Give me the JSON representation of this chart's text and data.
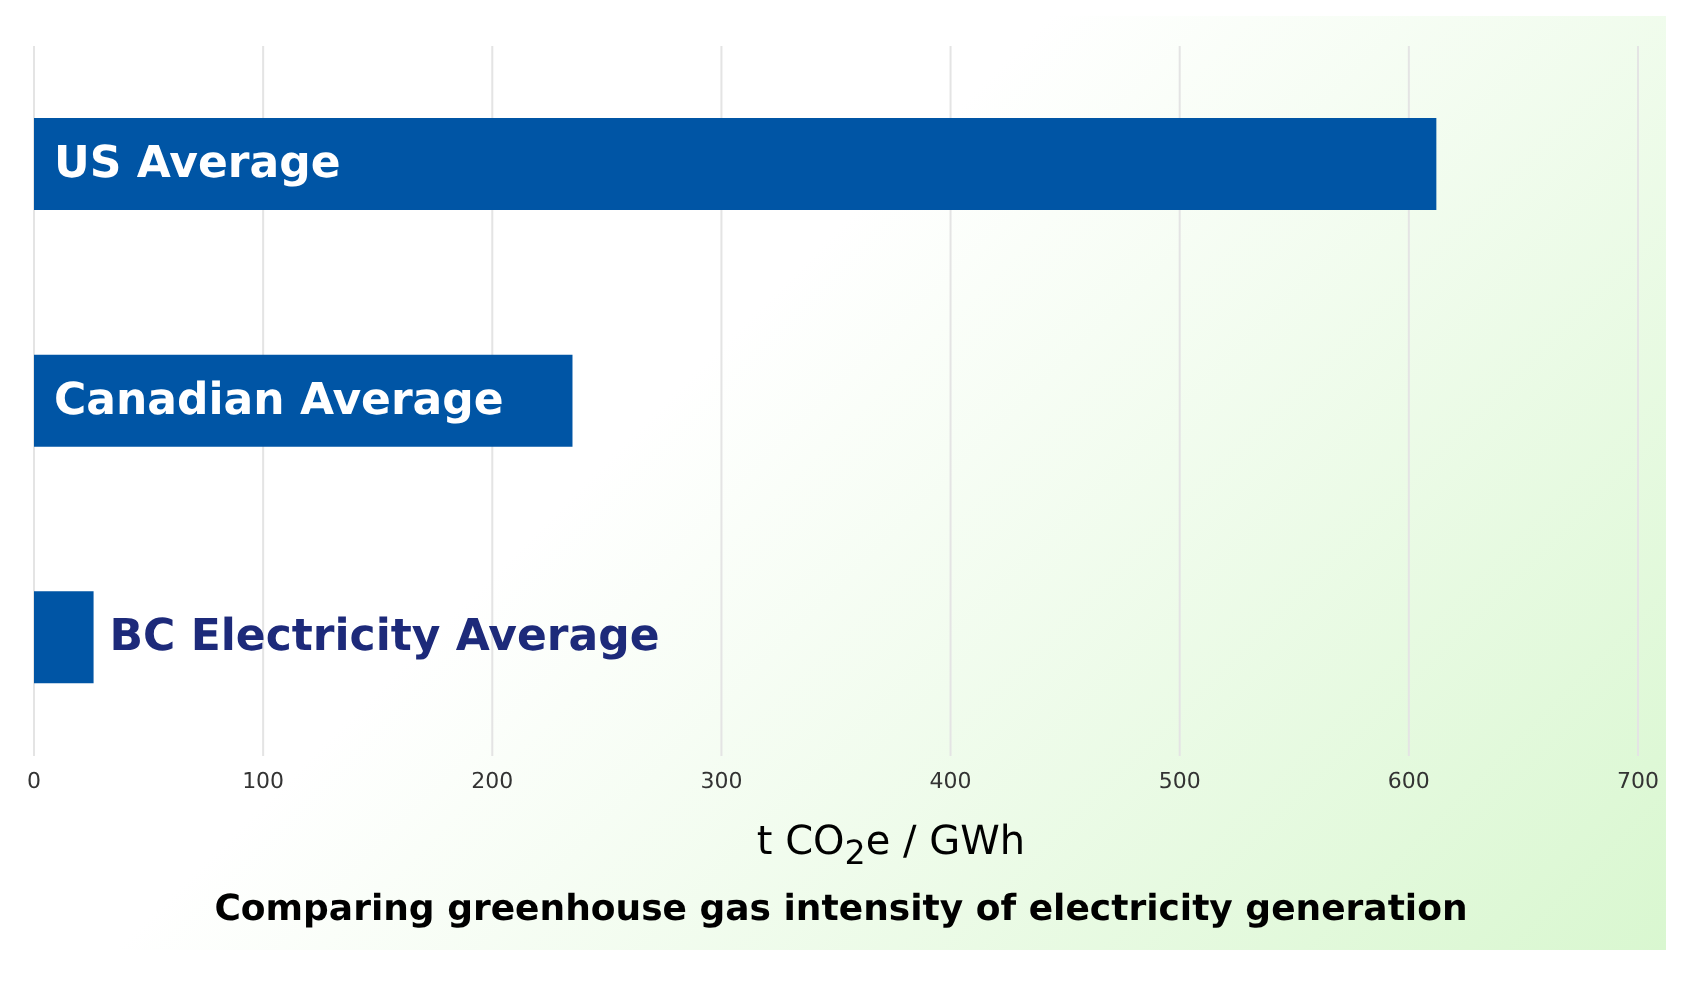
{
  "chart_data": {
    "type": "bar",
    "orientation": "horizontal",
    "title": "Comparing greenhouse gas intensity of electricity generation",
    "xlabel": "t CO$_{2}$e / GWh",
    "categories": [
      "US Average",
      "Canadian Average",
      "BC Electricity Average"
    ],
    "values": [
      612,
      235,
      26
    ],
    "color": "#0055a5",
    "xlim": [
      0,
      700
    ],
    "xticks": [
      0,
      100,
      200,
      300,
      400,
      500,
      600,
      700
    ],
    "grid": "x",
    "tick_labels": "x"
  }
}
